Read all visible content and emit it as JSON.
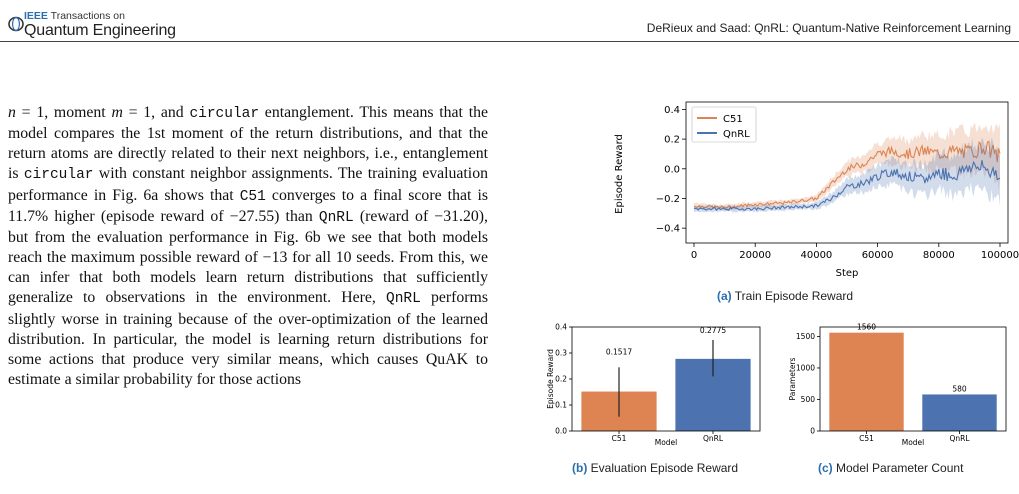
{
  "header": {
    "logo_prefix": "IEEE",
    "logo_top": "Transactions on",
    "logo_bottom": "Quantum Engineering",
    "running_head": "DeRieux and Saad: QnRL: Quantum-Native Reinforcement Learning"
  },
  "body": {
    "s1": "n",
    "s2": " = 1, moment ",
    "s3": "m",
    "s4": " = 1, and ",
    "s5": "circular",
    "s6": " entanglement. This means that the model compares the 1st moment of the return distributions, and that the return atoms are directly related to their next neighbors, i.e., entanglement is ",
    "s7": "circular",
    "s8": " with constant neighbor assignments. The training evaluation performance in Fig. 6a shows that ",
    "s9": "C51",
    "s10": " converges to a final score that is 11.7% higher (episode reward of −27.55) than ",
    "s11": "QnRL",
    "s12": " (reward of −31.20), but from the evaluation performance in Fig. 6b we see that both models reach the maximum possible reward of −13 for all 10 seeds. From this, we can infer that both models learn return distributions that sufficiently generalize to observations in the environment. Here, ",
    "s13": "QnRL",
    "s14": " performs slightly worse in training because of the over-optimization of the learned distribution. In particular, the model is learning return distributions for some actions that produce very similar means, which causes QuAK to estimate a similar probability for those actions"
  },
  "colors": {
    "c51": "#dd8452",
    "qnrl": "#4c72b0",
    "caption_label": "#2a6fb0"
  },
  "chart_data": [
    {
      "type": "line",
      "xlabel": "Step",
      "ylabel": "Episode Reward",
      "xlim": [
        0,
        100000
      ],
      "ylim": [
        -0.5,
        0.45
      ],
      "xticks": [
        0,
        20000,
        40000,
        60000,
        80000,
        100000
      ],
      "yticks": [
        -0.4,
        -0.2,
        0.0,
        0.2,
        0.4
      ],
      "legend_position": "top-left",
      "series": [
        {
          "name": "C51",
          "x": [
            0,
            10000,
            20000,
            30000,
            40000,
            45000,
            50000,
            55000,
            60000,
            65000,
            70000,
            75000,
            80000,
            85000,
            90000,
            95000,
            100000
          ],
          "values": [
            -0.25,
            -0.26,
            -0.24,
            -0.23,
            -0.2,
            -0.1,
            0.0,
            0.03,
            0.1,
            0.12,
            0.1,
            0.12,
            0.1,
            0.12,
            0.11,
            0.15,
            0.08
          ]
        },
        {
          "name": "QnRL",
          "x": [
            0,
            10000,
            20000,
            30000,
            40000,
            45000,
            50000,
            55000,
            60000,
            65000,
            70000,
            75000,
            80000,
            85000,
            90000,
            95000,
            100000
          ],
          "values": [
            -0.27,
            -0.27,
            -0.27,
            -0.26,
            -0.25,
            -0.2,
            -0.12,
            -0.1,
            -0.05,
            -0.02,
            -0.05,
            -0.08,
            -0.02,
            -0.05,
            0.02,
            0.0,
            -0.03
          ]
        }
      ]
    },
    {
      "type": "bar",
      "xlabel": "Model",
      "ylabel": "Episode Reward",
      "categories": [
        "C51",
        "QnRL"
      ],
      "values": [
        0.1517,
        0.2775
      ],
      "value_labels": [
        "0.1517",
        "0.2775"
      ],
      "error": [
        [
          0.055,
          0.245
        ],
        [
          0.21,
          0.35
        ]
      ],
      "ylim": [
        0,
        0.4
      ],
      "yticks": [
        0.0,
        0.1,
        0.2,
        0.3,
        0.4
      ]
    },
    {
      "type": "bar",
      "xlabel": "Model",
      "ylabel": "Parameters",
      "categories": [
        "C51",
        "QnRL"
      ],
      "values": [
        1560,
        580
      ],
      "value_labels": [
        "1560",
        "580"
      ],
      "ylim": [
        0,
        1650
      ],
      "yticks": [
        0,
        500,
        1000,
        1500
      ]
    }
  ],
  "captions": {
    "a_label": "(a)",
    "a_text": " Train Episode Reward",
    "b_label": "(b)",
    "b_text": " Evaluation Episode Reward",
    "c_label": "(c)",
    "c_text": " Model Parameter Count"
  }
}
